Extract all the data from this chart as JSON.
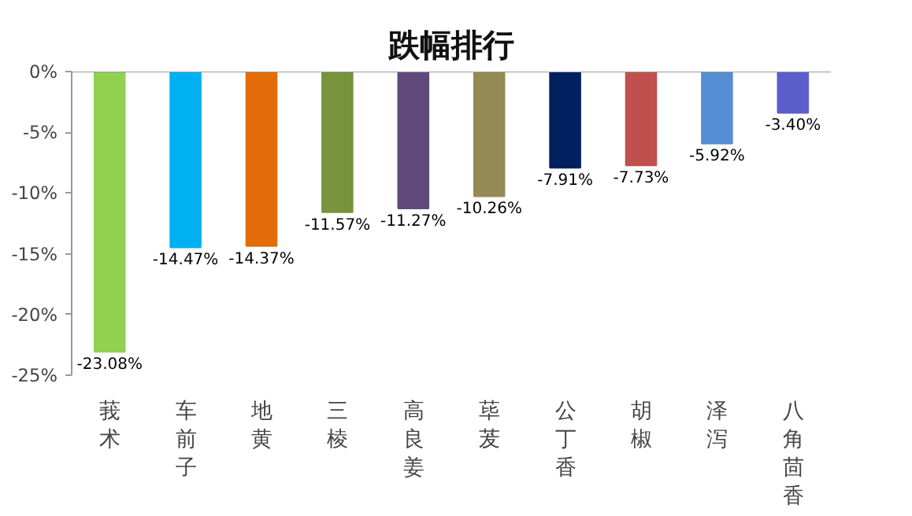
{
  "chart_data": {
    "type": "bar",
    "title": "跌幅排行",
    "categories": [
      "莪术",
      "车前子",
      "地黄",
      "三棱",
      "高良姜",
      "荜茇",
      "公丁香",
      "胡椒",
      "泽泻",
      "八角茴香"
    ],
    "values": [
      -23.08,
      -14.47,
      -14.37,
      -11.57,
      -11.27,
      -10.26,
      -7.91,
      -7.73,
      -5.92,
      -3.4
    ],
    "colors": [
      "#92d050",
      "#00b0f0",
      "#e36c09",
      "#77933c",
      "#604a7b",
      "#948a54",
      "#002060",
      "#c0504d",
      "#558ed5",
      "#5b5fcb"
    ],
    "value_labels": [
      "-23.08%",
      "-14.47%",
      "-14.37%",
      "-11.57%",
      "-11.27%",
      "-10.26%",
      "-7.91%",
      "-7.73%",
      "-5.92%",
      "-3.40%"
    ],
    "ylim": [
      -25,
      0
    ],
    "yticks": [
      {
        "value": 0,
        "label": "0%"
      },
      {
        "value": -5,
        "label": "-5%"
      },
      {
        "value": -10,
        "label": "-10%"
      },
      {
        "value": -15,
        "label": "-15%"
      },
      {
        "value": -20,
        "label": "-20%"
      },
      {
        "value": -25,
        "label": "-25%"
      }
    ],
    "grid": false
  }
}
